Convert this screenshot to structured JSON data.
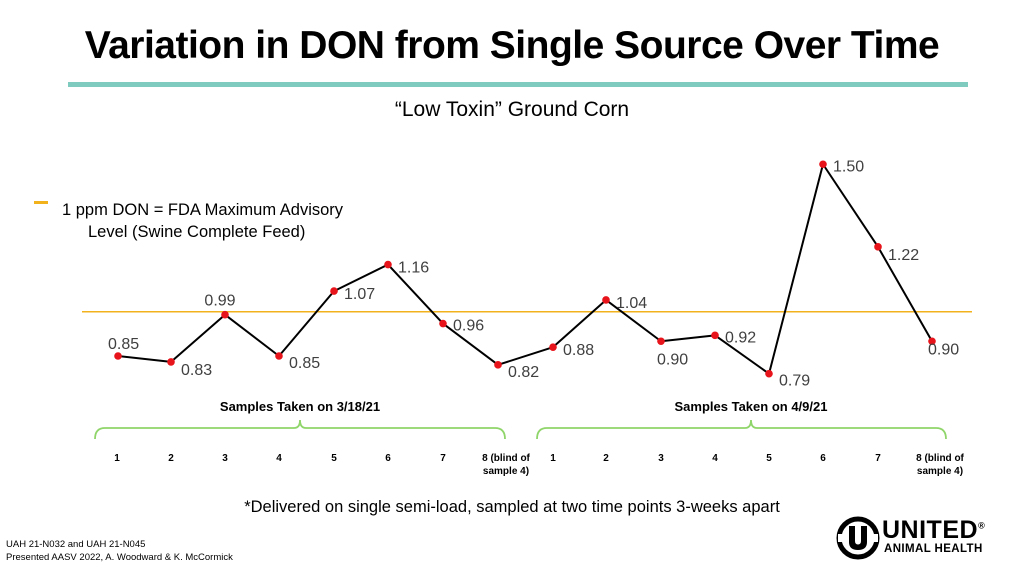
{
  "slide": {
    "title": "Variation in DON from Single Source Over Time",
    "footnote": "*Delivered on single semi-load, sampled at two time points 3-weeks apart",
    "credits": [
      "UAH 21-N032 and UAH 21-N045",
      "Presented AASV 2022, A. Woodward & K. McCormick"
    ],
    "logo": {
      "name": "UNITED",
      "sub": "ANIMAL HEALTH",
      "trademark": "®",
      "icon": "united-u-logo-icon"
    }
  },
  "chart_data": {
    "type": "line",
    "title": "“Low Toxin” Ground Corn",
    "xlabel": "",
    "ylabel": "",
    "ylim": [
      0.75,
      1.55
    ],
    "grid": false,
    "categories": [
      "1",
      "2",
      "3",
      "4",
      "5",
      "6",
      "7",
      "8 (blind of sample 4)",
      "1",
      "2",
      "3",
      "4",
      "5",
      "6",
      "7",
      "8 (blind of sample 4)"
    ],
    "series": [
      {
        "values": [
          0.85,
          0.83,
          0.99,
          0.85,
          1.07,
          1.16,
          0.96,
          0.82,
          0.88,
          1.04,
          0.9,
          0.92,
          0.79,
          1.5,
          1.22,
          0.9
        ]
      }
    ],
    "data_labels": [
      "0.85",
      "0.83",
      "0.99",
      "0.85",
      "1.07",
      "1.16",
      "0.96",
      "0.82",
      "0.88",
      "1.04",
      "0.90",
      "0.92",
      "0.79",
      "1.50",
      "1.22",
      "0.90"
    ],
    "reference_line": {
      "value": 1.0,
      "label": "1 ppm DON = FDA Maximum Advisory Level (Swine Complete Feed)",
      "color": "#f2b21c"
    },
    "groups": [
      {
        "label": "Samples Taken on 3/18/21",
        "from": 0,
        "to": 7
      },
      {
        "label": "Samples Taken on 4/9/21",
        "from": 8,
        "to": 15
      }
    ],
    "colors": {
      "line": "#000000",
      "marker": "#e8141b",
      "bracket": "#8fd56a",
      "label": "#404040"
    }
  }
}
